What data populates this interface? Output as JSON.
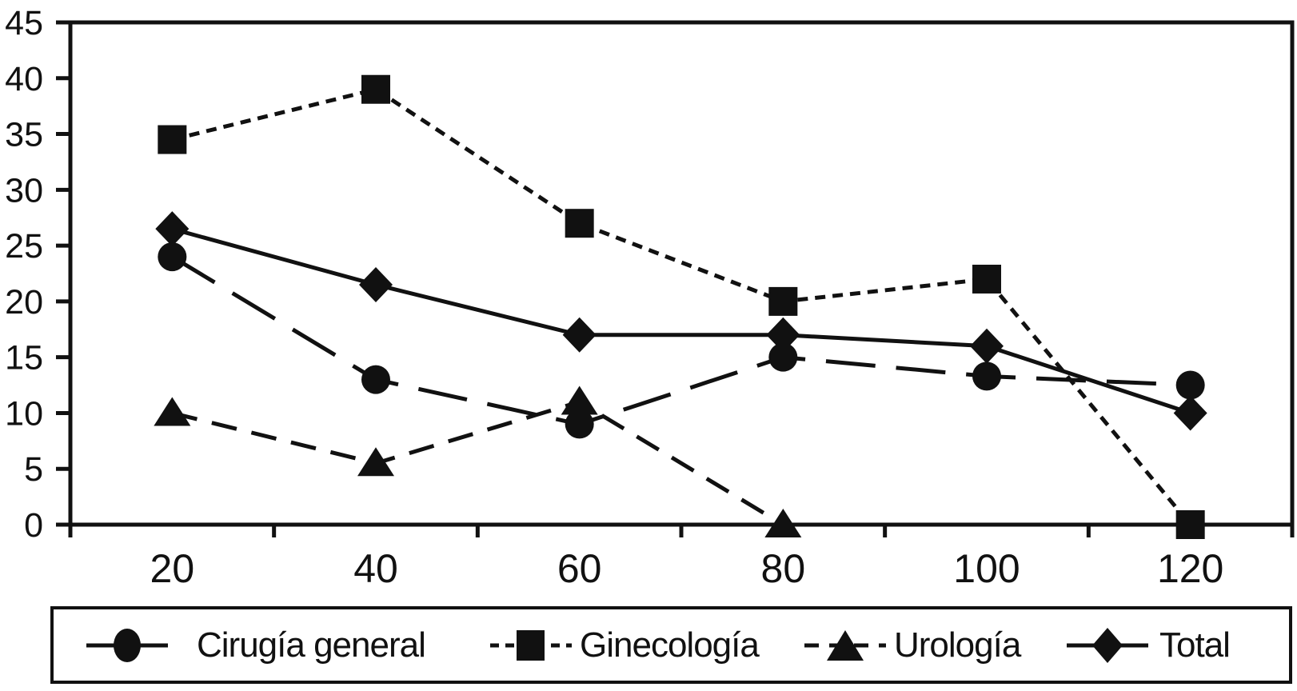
{
  "figure": {
    "background_color": "#ffffff",
    "ink_color": "#111111"
  },
  "chart_data": {
    "type": "line",
    "title": "",
    "xlabel": "",
    "ylabel": "",
    "grid": false,
    "legend_position": "bottom-outside",
    "categories": [
      20,
      40,
      60,
      80,
      100,
      120
    ],
    "x_tick_labels": [
      "20",
      "40",
      "60",
      "80",
      "100",
      "120"
    ],
    "x_axis_tick_style": "between-categories",
    "y_ticks": [
      0,
      5,
      10,
      15,
      20,
      25,
      30,
      35,
      40,
      45
    ],
    "y_tick_labels": [
      "0",
      "5",
      "10",
      "15",
      "20",
      "25",
      "30",
      "35",
      "40",
      "45"
    ],
    "ylim": [
      0,
      45
    ],
    "series": [
      {
        "name": "Cirugía general",
        "marker": "circle",
        "line_style": "long-dash",
        "color": "#111111",
        "values": [
          24,
          13,
          9,
          15,
          13.3,
          12.5
        ]
      },
      {
        "name": "Ginecología",
        "marker": "square",
        "line_style": "dotted",
        "color": "#111111",
        "values": [
          34.5,
          39,
          27,
          20,
          22,
          0
        ]
      },
      {
        "name": "Urología",
        "marker": "triangle",
        "line_style": "dashed",
        "color": "#111111",
        "values": [
          10,
          5.5,
          11,
          0,
          null,
          null
        ]
      },
      {
        "name": "Total",
        "marker": "diamond",
        "line_style": "solid",
        "color": "#111111",
        "values": [
          26.5,
          21.5,
          17,
          17,
          16,
          10
        ]
      }
    ]
  }
}
